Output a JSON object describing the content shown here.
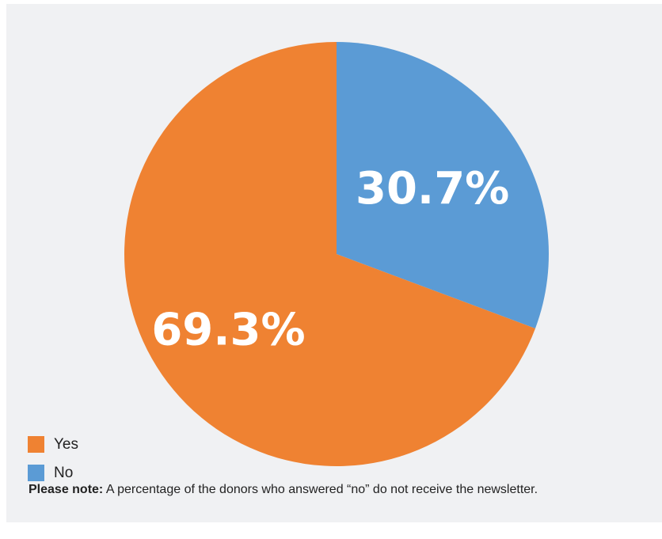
{
  "chart_data": {
    "type": "pie",
    "slices": [
      {
        "label": "Yes",
        "value": 69.3,
        "value_label": "69.3%",
        "color": "#ef8232"
      },
      {
        "label": "No",
        "value": 30.7,
        "value_label": "30.7%",
        "color": "#5b9bd5"
      }
    ],
    "legend_position": "bottom-left"
  },
  "legend": {
    "items": [
      {
        "label": "Yes",
        "color": "#ef8232"
      },
      {
        "label": "No",
        "color": "#5b9bd5"
      }
    ]
  },
  "note": {
    "prefix": "Please note:",
    "text": "A percentage of the donors who answered “no” do not receive the newsletter."
  },
  "colors": {
    "background": "#f0f1f3",
    "label_text": "#ffffff"
  }
}
